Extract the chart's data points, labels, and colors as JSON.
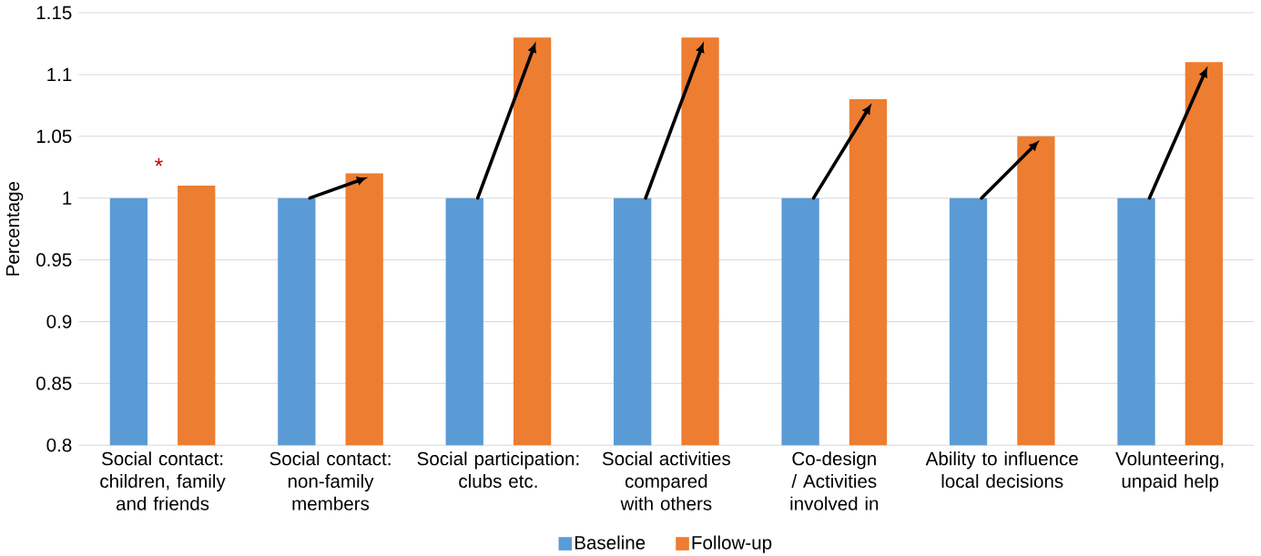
{
  "chart_data": {
    "type": "bar",
    "ylabel": "Percentage",
    "categories": [
      "Social contact: children, family and friends",
      "Social contact: non-family members",
      "Social participation: clubs etc.",
      "Social activities compared with others",
      "Co-design / Activities involved in",
      "Ability to influence local decisions",
      "Volunteering, unpaid help"
    ],
    "series": [
      {
        "name": "Baseline",
        "color": "#5b9bd5",
        "values": [
          1,
          1,
          1,
          1,
          1,
          1,
          1
        ]
      },
      {
        "name": "Follow-up",
        "color": "#ed7d31",
        "values": [
          1.01,
          1.02,
          1.13,
          1.13,
          1.08,
          1.05,
          1.11
        ]
      }
    ],
    "ylim": [
      0.8,
      1.15
    ],
    "yticks": [
      0.8,
      0.85,
      0.9,
      0.95,
      1,
      1.05,
      1.1,
      1.15
    ],
    "grid": "y",
    "legend": "bottom",
    "annotations": [
      "*"
    ]
  }
}
